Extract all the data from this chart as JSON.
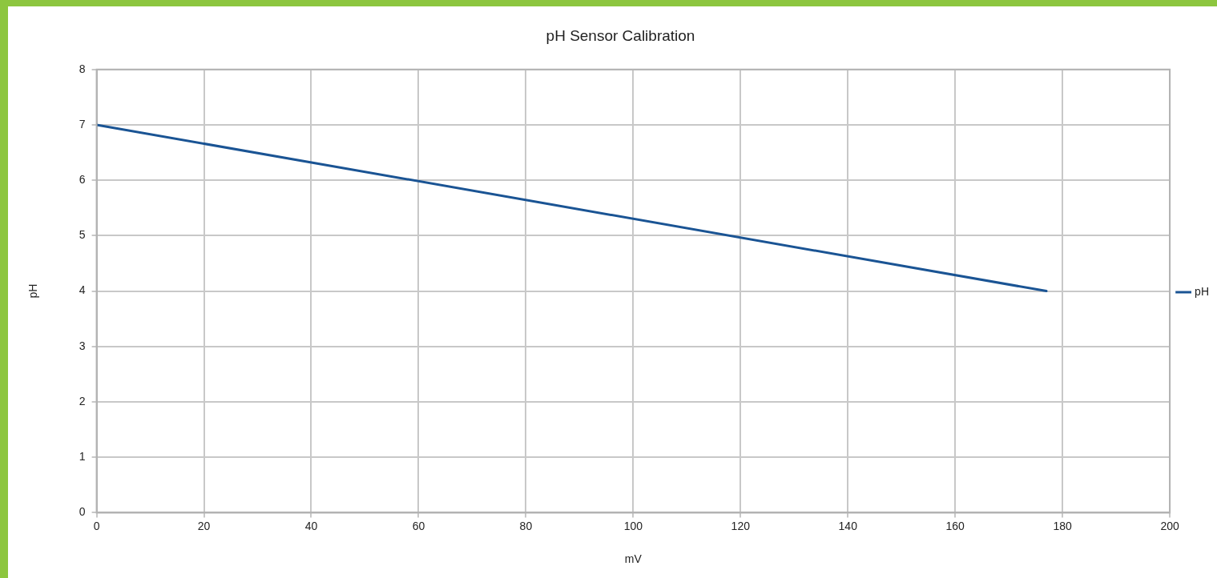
{
  "chart_data": {
    "type": "line",
    "title": "pH Sensor Calibration",
    "xlabel": "mV",
    "ylabel": "pH",
    "series": [
      {
        "name": "pH",
        "color": "#1a5494",
        "x": [
          0,
          177
        ],
        "values": [
          7,
          4
        ]
      }
    ],
    "xlim": [
      0,
      200
    ],
    "xticks": [
      0,
      20,
      40,
      60,
      80,
      100,
      120,
      140,
      160,
      180,
      200
    ],
    "ylim": [
      0,
      8
    ],
    "yticks": [
      0,
      1,
      2,
      3,
      4,
      5,
      6,
      7,
      8
    ],
    "grid": true,
    "legend": "right",
    "marker": "none",
    "line_style": "solid"
  }
}
